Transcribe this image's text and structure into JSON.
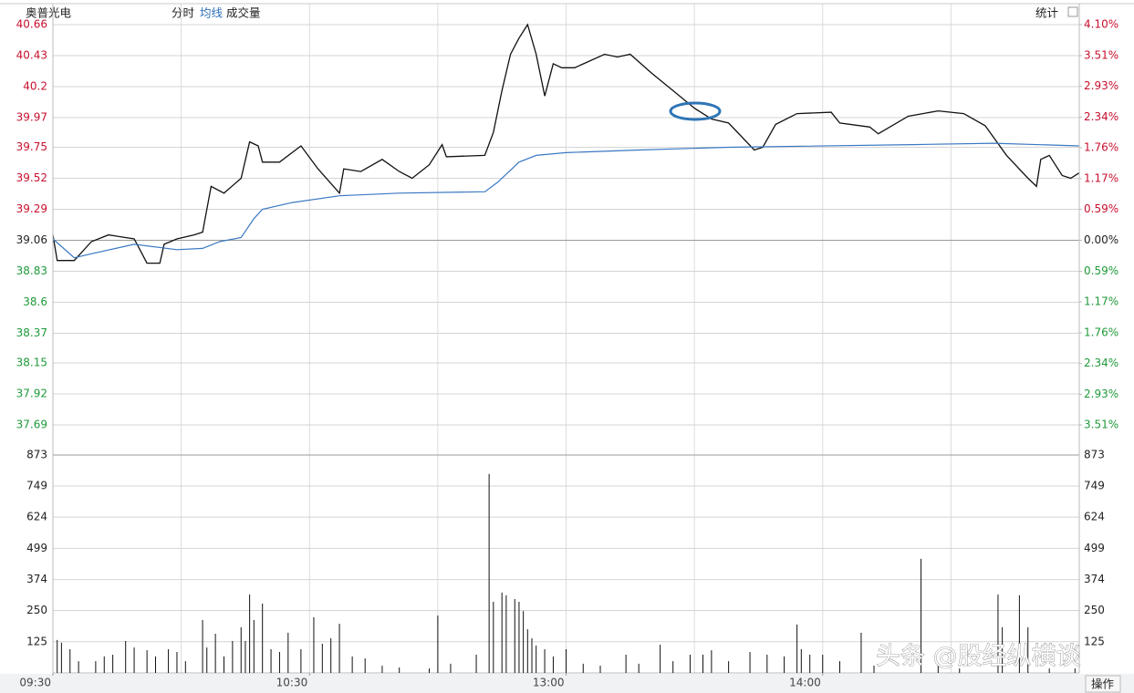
{
  "header": {
    "stock": "奥普光电",
    "tabs": [
      "分时",
      "均线",
      "成交量"
    ],
    "stats": "统计"
  },
  "footer": {
    "action": "操作"
  },
  "watermark": "头条 @股经纵横谈",
  "chart_data": [
    {
      "type": "line",
      "xlim": [
        0,
        240
      ],
      "xgrid": [
        30,
        60,
        90,
        120,
        150,
        180,
        210
      ],
      "ylim": [
        37.46,
        40.66
      ],
      "yticks": [
        40.66,
        40.43,
        40.2,
        39.97,
        39.75,
        39.52,
        39.29,
        39.06,
        38.83,
        38.6,
        38.37,
        38.15,
        37.92,
        37.69
      ],
      "y2lim": [
        -4.1,
        4.1
      ],
      "y2ticks": [
        {
          "value": 4.1,
          "label": "4.10%"
        },
        {
          "value": 3.51,
          "label": "3.51%"
        },
        {
          "value": 2.93,
          "label": "2.93%"
        },
        {
          "value": 2.34,
          "label": "2.34%"
        },
        {
          "value": 1.76,
          "label": "1.76%"
        },
        {
          "value": 1.17,
          "label": "1.17%"
        },
        {
          "value": 0.59,
          "label": "0.59%"
        },
        {
          "value": 0,
          "label": "0.00%"
        },
        {
          "value": -0.59,
          "label": "0.59%"
        },
        {
          "value": -1.17,
          "label": "1.17%"
        },
        {
          "value": -1.76,
          "label": "1.76%"
        },
        {
          "value": -2.34,
          "label": "2.34%"
        },
        {
          "value": -2.93,
          "label": "2.93%"
        },
        {
          "value": -3.51,
          "label": "3.51%"
        }
      ],
      "up_color": "#c8102e",
      "down_color": "#1f9a3a",
      "grid": true,
      "series": [
        {
          "color": "#111111",
          "x": [
            0,
            1,
            5,
            9,
            13,
            19,
            22,
            25,
            26,
            29,
            33,
            35,
            37,
            40,
            44,
            46,
            48,
            49,
            53,
            58,
            62,
            67,
            68,
            72,
            77,
            81,
            84,
            88,
            91,
            92,
            101,
            103,
            105,
            107,
            109,
            111,
            113,
            115,
            117,
            119,
            122,
            129,
            132,
            135,
            140,
            145,
            150,
            154,
            158,
            164,
            166,
            169,
            174,
            182,
            184,
            191,
            193,
            200,
            207,
            213,
            218,
            223,
            228,
            230,
            231,
            233,
            236,
            238,
            240
          ],
          "values": [
            39.1,
            38.91,
            38.91,
            39.05,
            39.1,
            39.07,
            38.89,
            38.89,
            39.03,
            39.07,
            39.1,
            39.12,
            39.46,
            39.41,
            39.52,
            39.79,
            39.76,
            39.64,
            39.64,
            39.76,
            39.59,
            39.41,
            39.59,
            39.57,
            39.66,
            39.57,
            39.52,
            39.62,
            39.77,
            39.68,
            39.69,
            39.86,
            40.17,
            40.44,
            40.56,
            40.66,
            40.44,
            40.13,
            40.37,
            40.34,
            40.34,
            40.44,
            40.42,
            40.44,
            40.3,
            40.17,
            40.04,
            39.96,
            39.93,
            39.73,
            39.75,
            39.92,
            40.0,
            40.01,
            39.93,
            39.9,
            39.85,
            39.98,
            40.02,
            40.0,
            39.91,
            39.69,
            39.52,
            39.46,
            39.66,
            39.69,
            39.54,
            39.52,
            39.56
          ]
        },
        {
          "color": "#3a78c2",
          "x": [
            0,
            5,
            9,
            19,
            29,
            35,
            39,
            44,
            47,
            49,
            56,
            67,
            81,
            101,
            104,
            109,
            113,
            120,
            137,
            158,
            201,
            220,
            240
          ],
          "values": [
            39.07,
            38.93,
            38.96,
            39.03,
            38.99,
            39.0,
            39.05,
            39.08,
            39.22,
            39.29,
            39.34,
            39.39,
            39.41,
            39.42,
            39.49,
            39.64,
            39.69,
            39.71,
            39.73,
            39.75,
            39.77,
            39.78,
            39.76
          ]
        }
      ]
    },
    {
      "type": "bar",
      "color": "#111111",
      "xlim": [
        0,
        240
      ],
      "xticks": [
        {
          "value": 0,
          "label": "09:30"
        },
        {
          "value": 60,
          "label": "10:30"
        },
        {
          "value": 120,
          "label": "13:00"
        },
        {
          "value": 180,
          "label": "14:00"
        }
      ],
      "ylim": [
        0,
        873
      ],
      "yticks": [
        873,
        749,
        624,
        499,
        374,
        250,
        125
      ],
      "x": [
        1,
        2,
        4,
        6,
        10,
        12,
        14,
        17,
        19,
        22,
        24,
        27,
        29,
        31,
        35,
        36,
        38,
        40,
        42,
        44,
        45,
        46,
        47,
        49,
        51,
        53,
        55,
        58,
        61,
        63,
        65,
        67,
        70,
        73,
        77,
        81,
        88,
        90,
        93,
        99,
        102,
        103,
        105,
        106,
        108,
        109,
        110,
        111,
        112,
        113,
        115,
        117,
        120,
        124,
        128,
        134,
        137,
        142,
        145,
        149,
        152,
        154,
        158,
        163,
        167,
        171,
        174,
        175,
        177,
        180,
        184,
        189,
        192,
        203,
        207,
        212,
        221,
        222,
        226,
        228,
        233,
        239
      ],
      "values": [
        132,
        121,
        95,
        47,
        47,
        66,
        73,
        128,
        102,
        91,
        66,
        95,
        84,
        47,
        212,
        102,
        157,
        66,
        128,
        183,
        128,
        314,
        212,
        278,
        95,
        84,
        161,
        95,
        223,
        117,
        139,
        197,
        66,
        58,
        29,
        22,
        18,
        230,
        37,
        73,
        797,
        285,
        322,
        311,
        296,
        285,
        248,
        175,
        139,
        110,
        95,
        66,
        95,
        37,
        29,
        73,
        37,
        113,
        47,
        73,
        73,
        91,
        47,
        84,
        73,
        66,
        194,
        95,
        73,
        73,
        47,
        161,
        29,
        457,
        29,
        18,
        314,
        183,
        311,
        183,
        18,
        18
      ]
    }
  ]
}
